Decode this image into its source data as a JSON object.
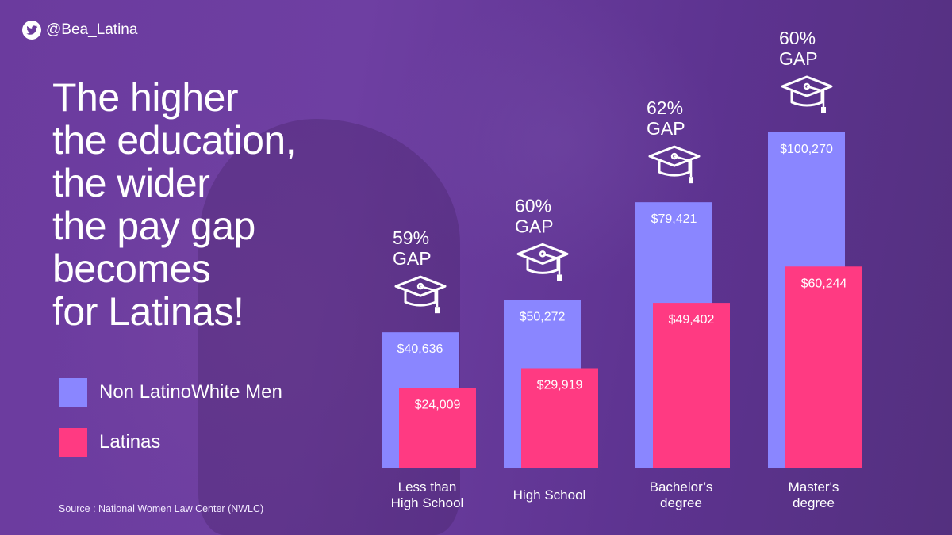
{
  "handle": "@Bea_Latina",
  "title_lines": [
    "The higher",
    "the education,",
    "the wider",
    "the pay gap",
    "becomes",
    "for Latinas!"
  ],
  "source": "Source : National Women Law Center (NWLC)",
  "icons": {
    "handle": "twitter-bird-icon",
    "gap": "graduation-cap-icon"
  },
  "colors": {
    "series_men": "#8a86ff",
    "series_latinas": "#ff3a82",
    "text": "#ffffff",
    "background": "#6a3a9c"
  },
  "chart_data": {
    "type": "bar",
    "categories": [
      [
        "Less than",
        "High School"
      ],
      [
        "High School"
      ],
      [
        "Bachelor’s",
        "degree"
      ],
      [
        "Master's",
        "degree"
      ]
    ],
    "series": [
      {
        "name": "Non LatinoWhite Men",
        "values": [
          40636,
          50272,
          79421,
          100270
        ],
        "labels": [
          "$40,636",
          "$50,272",
          "$79,421",
          "$100,270"
        ]
      },
      {
        "name": "Latinas",
        "values": [
          24009,
          29919,
          49402,
          60244
        ],
        "labels": [
          "$24,009",
          "$29,919",
          "$49,402",
          "$60,244"
        ]
      }
    ],
    "gap": [
      {
        "pct": "59%",
        "word": "GAP"
      },
      {
        "pct": "60%",
        "word": "GAP"
      },
      {
        "pct": "62%",
        "word": "GAP"
      },
      {
        "pct": "60%",
        "word": "GAP"
      }
    ],
    "ylim": [
      0,
      100270
    ],
    "legend_position": "left",
    "grid": false
  }
}
